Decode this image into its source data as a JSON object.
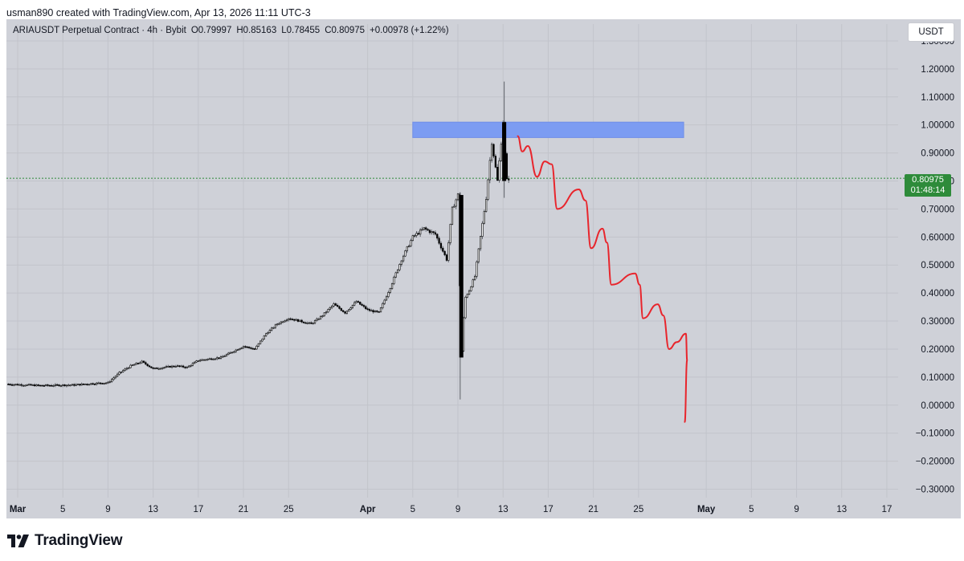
{
  "header": {
    "attribution": "usman890 created with TradingView.com, Apr 13, 2026 11:11 UTC-3"
  },
  "legend": {
    "symbol": "ARIAUSDT Perpetual Contract · 4h · Bybit",
    "open": "O0.79997",
    "high": "H0.85163",
    "low": "L0.78455",
    "close": "C0.80975",
    "change": "+0.00978 (+1.22%)"
  },
  "currency": "USDT",
  "price_tag": {
    "price": "0.80975",
    "countdown": "01:48:14"
  },
  "brand": {
    "name": "TradingView"
  },
  "colors": {
    "background": "#cfd1d8",
    "candle_up": "#ffffff",
    "candle_down": "#000000",
    "candle_wick": "#5d6168",
    "projection": "#e8252c",
    "zone": "#7c9cf2",
    "current_price_line": "#2e8b3a"
  },
  "chart_data": {
    "type": "candlestick",
    "title": "ARIAUSDT Perpetual Contract · 4h · Bybit",
    "y_ticks": [
      "1.30000",
      "1.20000",
      "1.10000",
      "1.00000",
      "0.90000",
      "0.80000",
      "0.70000",
      "0.60000",
      "0.50000",
      "0.40000",
      "0.30000",
      "0.20000",
      "0.10000",
      "0.00000",
      "−0.10000",
      "−0.20000",
      "−0.30000"
    ],
    "y_tick_values": [
      1.3,
      1.2,
      1.1,
      1.0,
      0.9,
      0.8,
      0.7,
      0.6,
      0.5,
      0.4,
      0.3,
      0.2,
      0.1,
      0.0,
      -0.1,
      -0.2,
      -0.3
    ],
    "hidden_y_tick": "0.80000",
    "ylim": [
      -0.33,
      1.36
    ],
    "x_ticks": [
      {
        "label": "Mar",
        "date": "2026-03-01",
        "month": true
      },
      {
        "label": "5",
        "date": "2026-03-05"
      },
      {
        "label": "9",
        "date": "2026-03-09"
      },
      {
        "label": "13",
        "date": "2026-03-13"
      },
      {
        "label": "17",
        "date": "2026-03-17"
      },
      {
        "label": "21",
        "date": "2026-03-21"
      },
      {
        "label": "25",
        "date": "2026-03-25"
      },
      {
        "label": "Apr",
        "date": "2026-04-01",
        "month": true
      },
      {
        "label": "5",
        "date": "2026-04-05"
      },
      {
        "label": "9",
        "date": "2026-04-09"
      },
      {
        "label": "13",
        "date": "2026-04-13"
      },
      {
        "label": "17",
        "date": "2026-04-17"
      },
      {
        "label": "21",
        "date": "2026-04-21"
      },
      {
        "label": "25",
        "date": "2026-04-25"
      },
      {
        "label": "May",
        "date": "2026-05-01",
        "month": true
      },
      {
        "label": "5",
        "date": "2026-05-05"
      },
      {
        "label": "9",
        "date": "2026-05-09"
      },
      {
        "label": "13",
        "date": "2026-05-13"
      },
      {
        "label": "17",
        "date": "2026-05-17"
      }
    ],
    "xlim": [
      "2026-02-28",
      "2026-05-18"
    ],
    "price_path": [
      [
        "2026-02-28",
        0.075
      ],
      [
        "2026-03-03",
        0.07
      ],
      [
        "2026-03-06",
        0.072
      ],
      [
        "2026-03-08",
        0.078
      ],
      [
        "2026-03-09",
        0.08
      ],
      [
        "2026-03-10",
        0.115
      ],
      [
        "2026-03-11",
        0.14
      ],
      [
        "2026-03-12",
        0.155
      ],
      [
        "2026-03-13",
        0.13
      ],
      [
        "2026-03-15",
        0.14
      ],
      [
        "2026-03-16",
        0.135
      ],
      [
        "2026-03-17",
        0.16
      ],
      [
        "2026-03-19",
        0.17
      ],
      [
        "2026-03-20",
        0.19
      ],
      [
        "2026-03-21",
        0.21
      ],
      [
        "2026-03-22",
        0.2
      ],
      [
        "2026-03-23",
        0.255
      ],
      [
        "2026-03-24",
        0.29
      ],
      [
        "2026-03-25",
        0.31
      ],
      [
        "2026-03-27",
        0.29
      ],
      [
        "2026-03-28",
        0.32
      ],
      [
        "2026-03-29",
        0.36
      ],
      [
        "2026-03-30",
        0.33
      ],
      [
        "2026-03-31",
        0.37
      ],
      [
        "2026-04-01",
        0.34
      ],
      [
        "2026-04-02",
        0.33
      ],
      [
        "2026-04-03",
        0.42
      ],
      [
        "2026-04-04",
        0.52
      ],
      [
        "2026-04-05",
        0.6
      ],
      [
        "2026-04-06",
        0.63
      ],
      [
        "2026-04-07",
        0.61
      ],
      [
        "2026-04-08",
        0.52
      ],
      [
        "2026-04-08.5",
        0.7
      ],
      [
        "2026-04-09",
        0.75
      ],
      [
        "2026-04-09.3",
        0.17
      ],
      [
        "2026-04-09.6",
        0.38
      ],
      [
        "2026-04-10",
        0.41
      ],
      [
        "2026-04-10.5",
        0.46
      ],
      [
        "2026-04-11",
        0.6
      ],
      [
        "2026-04-11.5",
        0.74
      ],
      [
        "2026-04-12",
        0.94
      ],
      [
        "2026-04-12.5",
        0.8
      ],
      [
        "2026-04-13",
        1.01
      ],
      [
        "2026-04-13.3",
        0.8
      ],
      [
        "2026-04-13.5",
        0.81
      ]
    ],
    "spikes": [
      {
        "date": "2026-04-09.2",
        "high": 0.76,
        "low": 0.02
      },
      {
        "date": "2026-04-13.1",
        "high": 1.155,
        "low": 0.74
      }
    ],
    "last": {
      "open": 0.79997,
      "high": 0.85163,
      "low": 0.78455,
      "close": 0.80975
    },
    "resistance_zone": {
      "date_from": "2026-04-05",
      "date_to": "2026-04-29",
      "price_from": 0.955,
      "price_to": 1.01
    },
    "projection_path": [
      [
        "2026-04-14.3",
        0.96
      ],
      [
        "2026-04-14.7",
        0.905
      ],
      [
        "2026-04-15.2",
        0.925
      ],
      [
        "2026-04-16",
        0.815
      ],
      [
        "2026-04-16.7",
        0.87
      ],
      [
        "2026-04-17.3",
        0.86
      ],
      [
        "2026-04-17.8",
        0.7
      ],
      [
        "2026-04-19.7",
        0.77
      ],
      [
        "2026-04-20.3",
        0.73
      ],
      [
        "2026-04-20.8",
        0.56
      ],
      [
        "2026-04-21.8",
        0.63
      ],
      [
        "2026-04-22.2",
        0.58
      ],
      [
        "2026-04-22.6",
        0.43
      ],
      [
        "2026-04-24.7",
        0.47
      ],
      [
        "2026-04-25.1",
        0.43
      ],
      [
        "2026-04-25.4",
        0.31
      ],
      [
        "2026-04-26.7",
        0.36
      ],
      [
        "2026-04-27.2",
        0.32
      ],
      [
        "2026-04-27.7",
        0.2
      ],
      [
        "2026-04-28.4",
        0.225
      ],
      [
        "2026-04-29.2",
        0.255
      ],
      [
        "2026-04-29.3",
        0.16
      ],
      [
        "2026-04-29.1",
        -0.06
      ]
    ],
    "current_price": 0.80975,
    "grid": true
  }
}
